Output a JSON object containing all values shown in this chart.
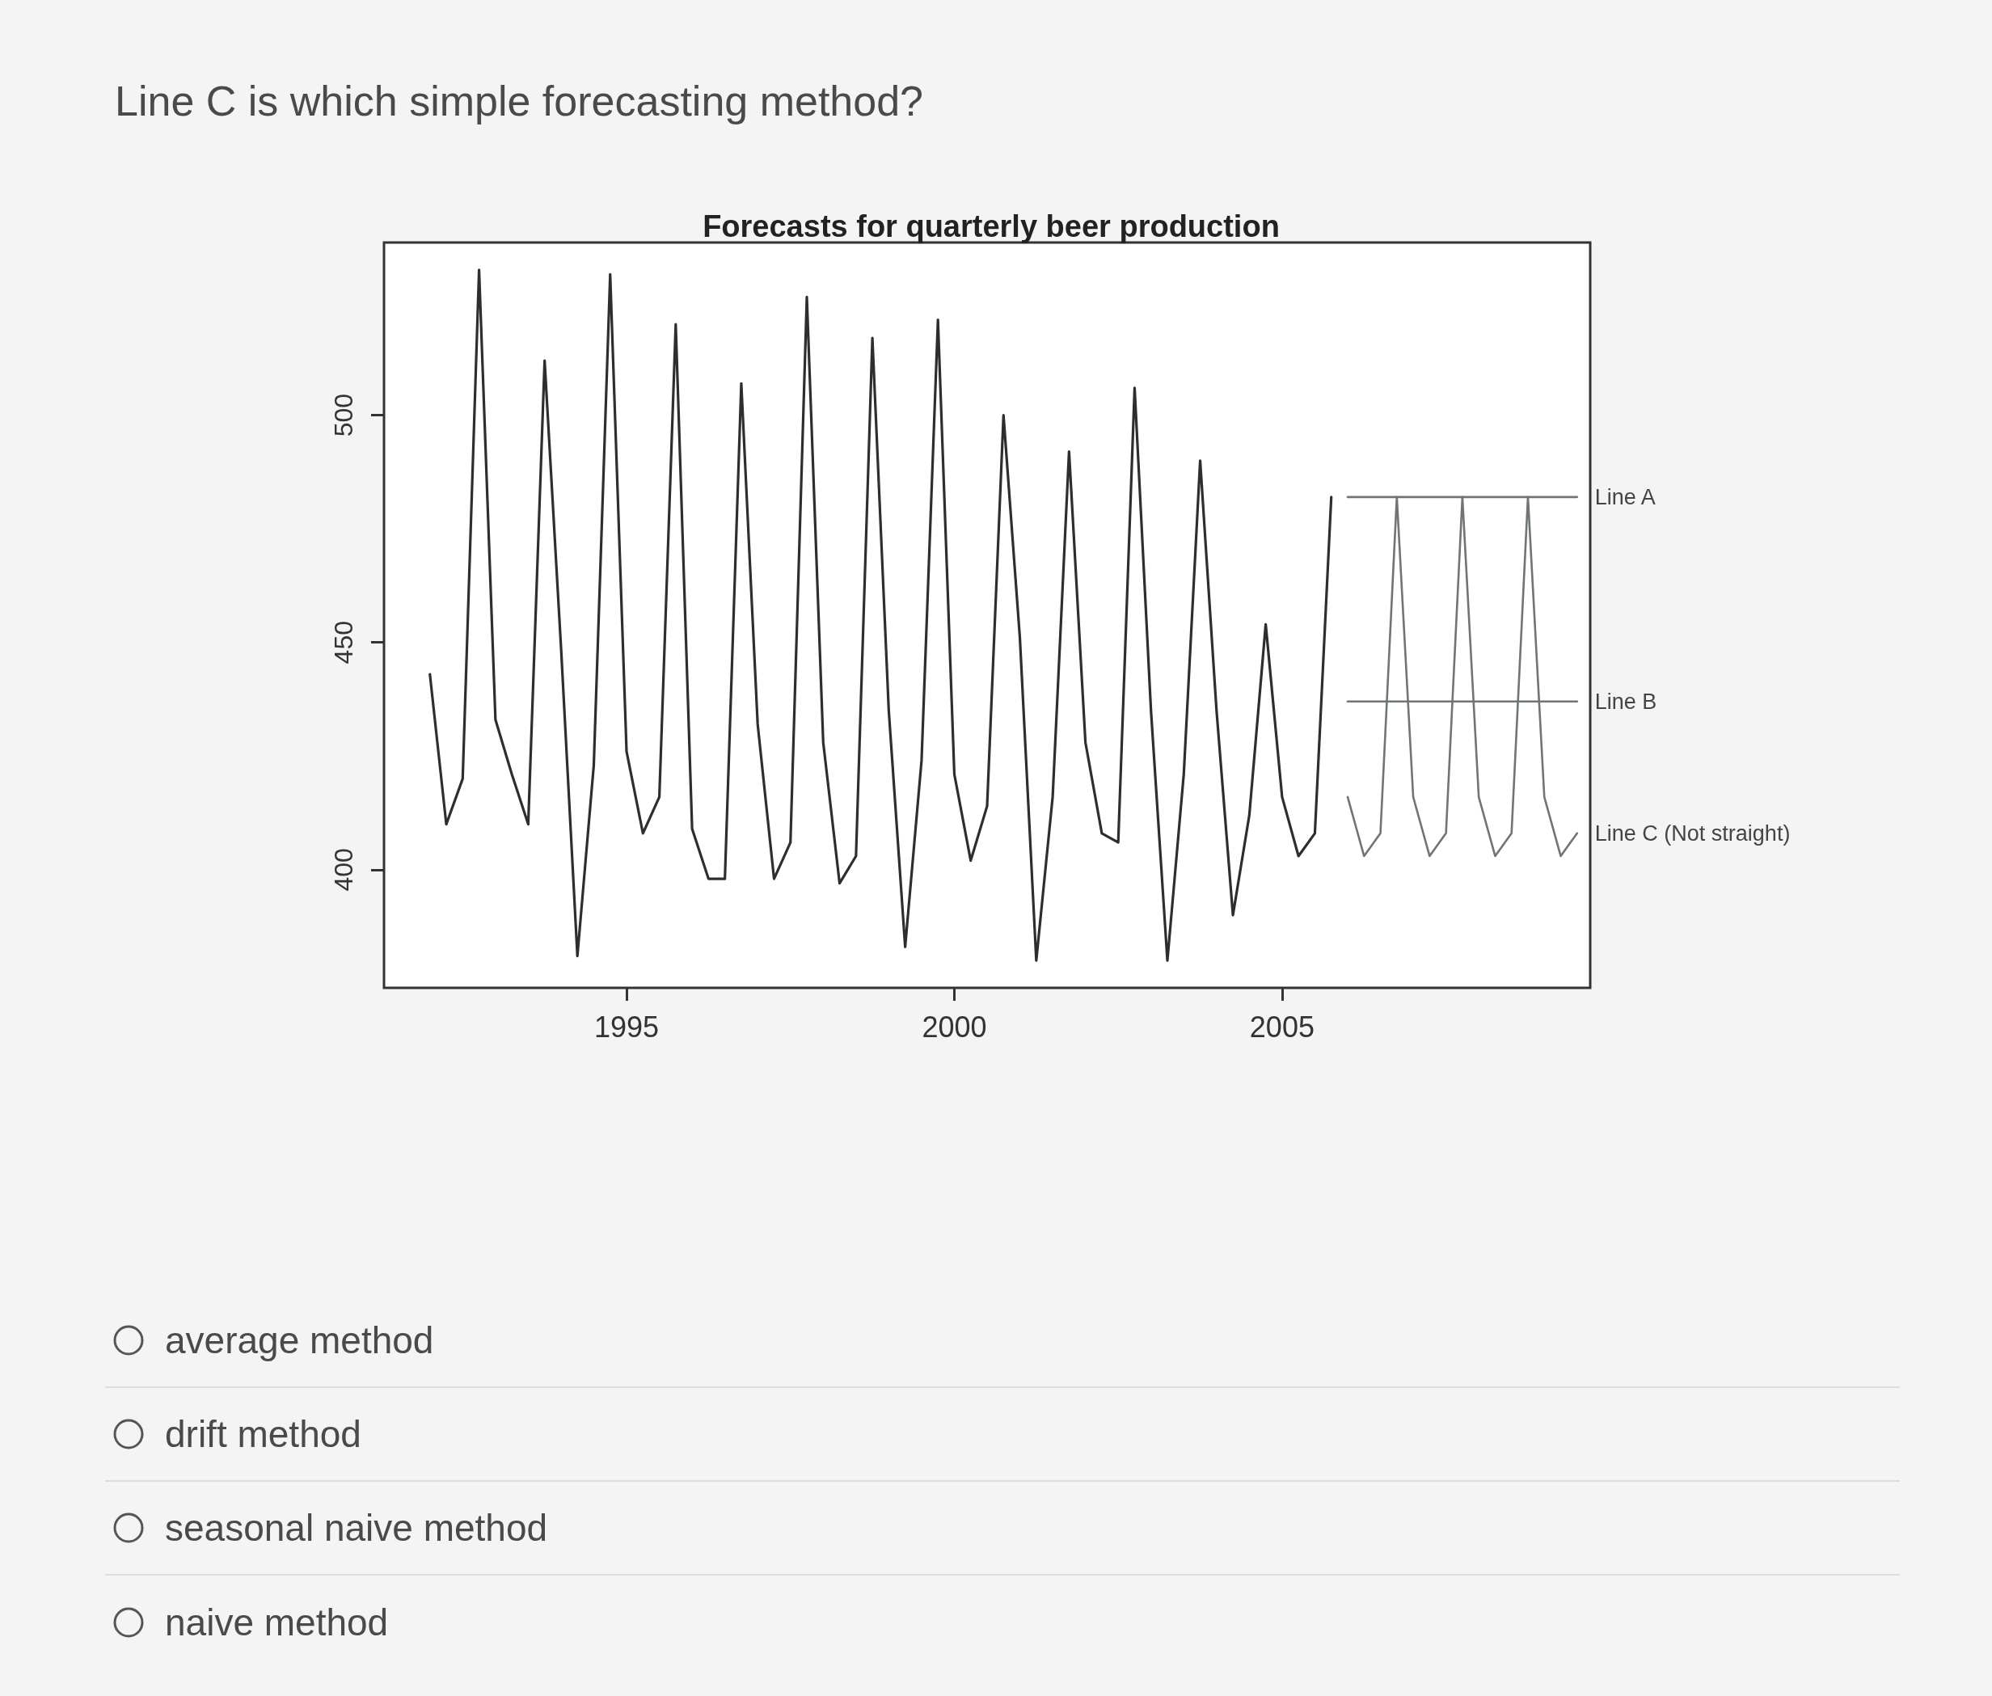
{
  "chart_data": {
    "type": "line",
    "title": "Forecasts for quarterly beer production",
    "annotations": [
      "Line C is which simple forecasting method?",
      "average method",
      "drift method",
      "seasonal naive method",
      "naive method"
    ],
    "x": [
      1992,
      1992.25,
      1992.5,
      1992.75,
      1993,
      1993.25,
      1993.5,
      1993.75,
      1994,
      1994.25,
      1994.5,
      1994.75,
      1995,
      1995.25,
      1995.5,
      1995.75,
      1996,
      1996.25,
      1996.5,
      1996.75,
      1997,
      1997.25,
      1997.5,
      1997.75,
      1998,
      1998.25,
      1998.5,
      1998.75,
      1999,
      1999.25,
      1999.5,
      1999.75,
      2000,
      2000.25,
      2000.5,
      2000.75,
      2001,
      2001.25,
      2001.5,
      2001.75,
      2002,
      2002.25,
      2002.5,
      2002.75,
      2003,
      2003.25,
      2003.5,
      2003.75,
      2004,
      2004.25,
      2004.5,
      2004.75,
      2005,
      2005.25,
      2005.5,
      2005.75
    ],
    "xlim": [
      1991.3,
      2009.7
    ],
    "ylim": [
      374,
      538
    ],
    "xticks": [
      1995,
      2000,
      2005
    ],
    "yticks": [
      400,
      450,
      500
    ],
    "series": [
      {
        "color": "#2e2e2e",
        "values": [
          443,
          410,
          420,
          532,
          433,
          421,
          410,
          512,
          449,
          381,
          423,
          531,
          426,
          408,
          416,
          520,
          409,
          398,
          398,
          507,
          432,
          398,
          406,
          526,
          428,
          397,
          403,
          517,
          435,
          383,
          424,
          521,
          421,
          402,
          414,
          500,
          451,
          380,
          416,
          492,
          428,
          408,
          406,
          506,
          435,
          380,
          421,
          490,
          435,
          390,
          412,
          454,
          416,
          403,
          408,
          482
        ]
      },
      {
        "name": "Line A",
        "color": "#6f7573",
        "x": [
          2006,
          2006.25,
          2006.5,
          2006.75,
          2007,
          2007.25,
          2007.5,
          2007.75,
          2008,
          2008.25,
          2008.5,
          2008.75,
          2009,
          2009.25,
          2009.5
        ],
        "values": [
          482,
          482,
          482,
          482,
          482,
          482,
          482,
          482,
          482,
          482,
          482,
          482,
          482,
          482,
          482
        ]
      },
      {
        "name": "Line B",
        "color": "#6f7573",
        "x": [
          2006,
          2006.25,
          2006.5,
          2006.75,
          2007,
          2007.25,
          2007.5,
          2007.75,
          2008,
          2008.25,
          2008.5,
          2008.75,
          2009,
          2009.25,
          2009.5
        ],
        "values": [
          437,
          437,
          437,
          437,
          437,
          437,
          437,
          437,
          437,
          437,
          437,
          437,
          437,
          437,
          437
        ]
      },
      {
        "name": "Line C (Not straight)",
        "color": "#6f7573",
        "x": [
          2006,
          2006.25,
          2006.5,
          2006.75,
          2007,
          2007.25,
          2007.5,
          2007.75,
          2008,
          2008.25,
          2008.5,
          2008.75,
          2009,
          2009.25,
          2009.5
        ],
        "values": [
          416,
          403,
          408,
          482,
          416,
          403,
          408,
          482,
          416,
          403,
          408,
          482,
          416,
          403,
          408
        ]
      }
    ]
  }
}
